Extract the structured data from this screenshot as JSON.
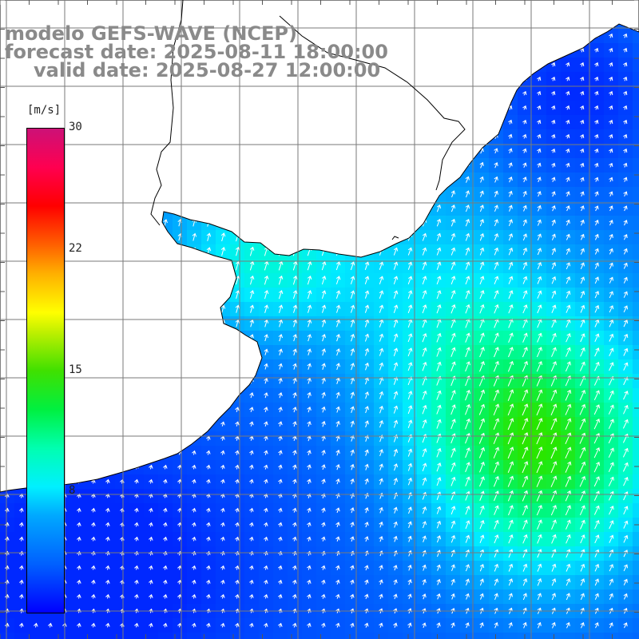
{
  "title": {
    "model_line": "modelo GEFS-WAVE (NCEP)",
    "forecast_line": "forecast date: 2025-08-11 18:00:00",
    "valid_line": "valid date: 2025-08-27 12:00:00"
  },
  "colorbar": {
    "unit": "[m/s]",
    "ticks": [
      "30",
      "22",
      "15",
      "8"
    ],
    "colors": [
      "#0000ff",
      "#00a8ff",
      "#00ffff",
      "#00f040",
      "#40e000",
      "#ffff00",
      "#ff6000",
      "#ff0000",
      "#cc1177"
    ]
  },
  "map": {
    "field": "wind speed (m/s) with wind direction arrows",
    "land_color": "#ffffff",
    "grid_color": "#808080",
    "coast_color": "#000000",
    "arrow_color": "#ffffff",
    "prevailing_wind_direction": "from south-southwest"
  }
}
